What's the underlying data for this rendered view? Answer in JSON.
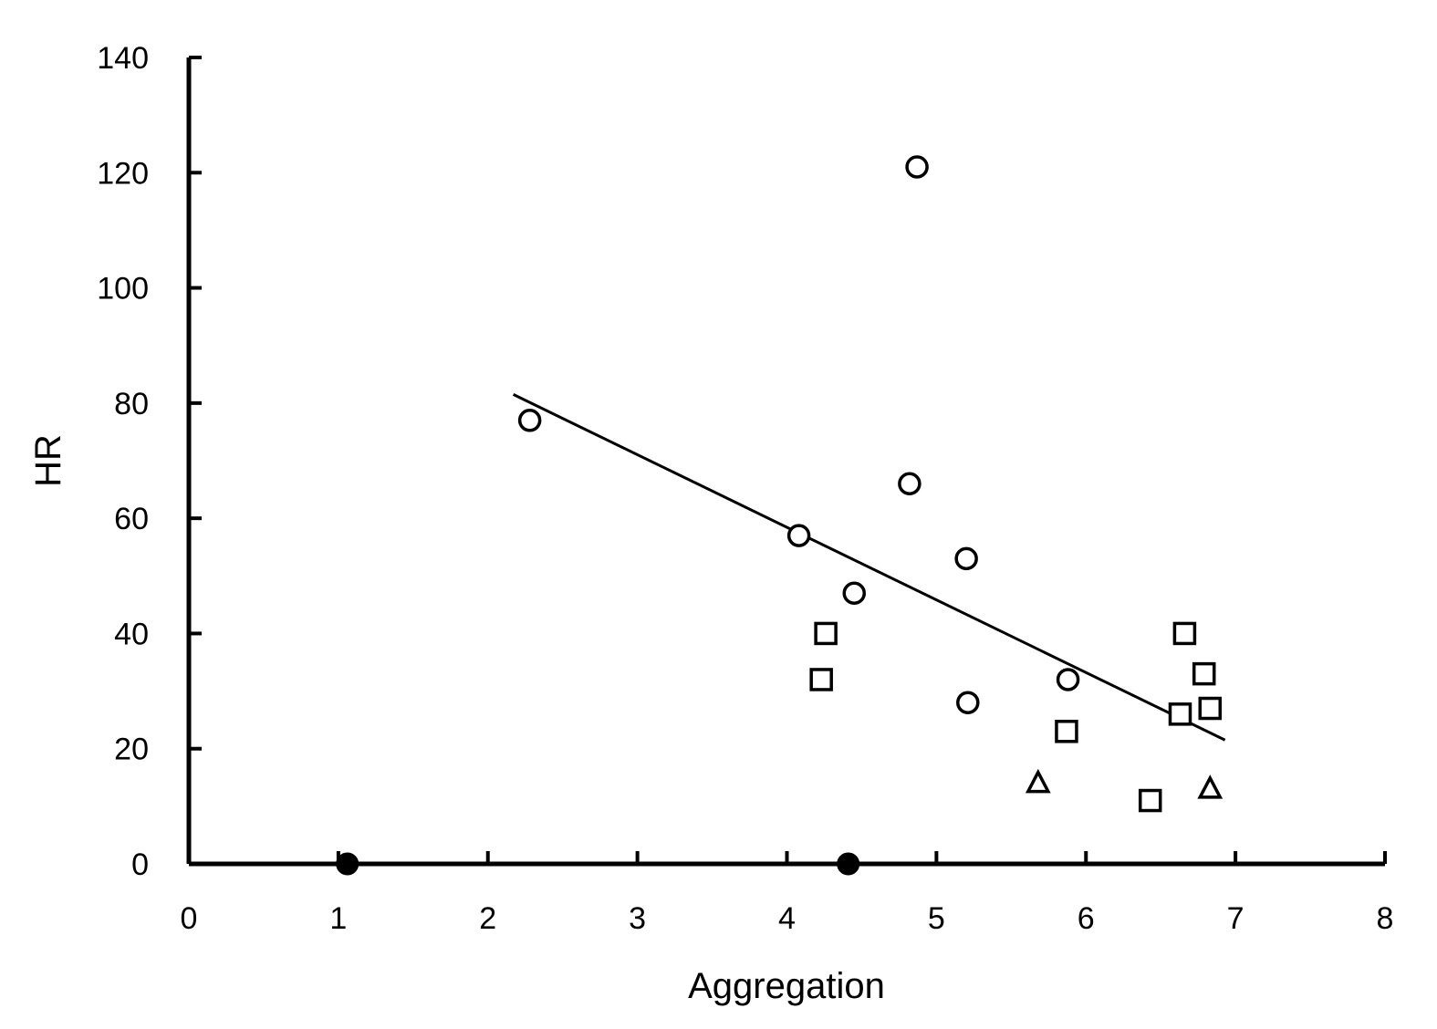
{
  "chart_data": {
    "type": "scatter",
    "title": "",
    "xlabel": "Aggregation",
    "ylabel": "HR",
    "xlim": [
      0,
      8
    ],
    "ylim": [
      0,
      140
    ],
    "x_ticks": [
      "0",
      "1",
      "2",
      "3",
      "4",
      "5",
      "6",
      "7",
      "8"
    ],
    "y_ticks": [
      "0",
      "20",
      "40",
      "60",
      "80",
      "100",
      "120",
      "140"
    ],
    "grid": false,
    "legend": "none",
    "series": [
      {
        "marker": "open-circle",
        "points": [
          {
            "x": 2.28,
            "y": 77
          },
          {
            "x": 4.08,
            "y": 57
          },
          {
            "x": 4.45,
            "y": 47
          },
          {
            "x": 4.82,
            "y": 66
          },
          {
            "x": 4.87,
            "y": 121
          },
          {
            "x": 5.2,
            "y": 53
          },
          {
            "x": 5.21,
            "y": 28
          },
          {
            "x": 5.88,
            "y": 32
          }
        ]
      },
      {
        "marker": "open-square",
        "points": [
          {
            "x": 4.23,
            "y": 32
          },
          {
            "x": 4.26,
            "y": 40
          },
          {
            "x": 5.87,
            "y": 23
          },
          {
            "x": 6.43,
            "y": 11
          },
          {
            "x": 6.63,
            "y": 26
          },
          {
            "x": 6.66,
            "y": 40
          },
          {
            "x": 6.79,
            "y": 33
          },
          {
            "x": 6.83,
            "y": 27
          }
        ]
      },
      {
        "marker": "open-triangle",
        "points": [
          {
            "x": 5.68,
            "y": 14
          },
          {
            "x": 6.83,
            "y": 13
          }
        ]
      },
      {
        "marker": "filled-circle",
        "points": [
          {
            "x": 1.06,
            "y": 0
          },
          {
            "x": 4.41,
            "y": 0
          }
        ]
      }
    ],
    "trendline": {
      "x": [
        2.17,
        6.93
      ],
      "y": [
        81.5,
        21.5
      ]
    },
    "colors": {
      "marks": "#000000",
      "background": "#ffffff"
    }
  }
}
